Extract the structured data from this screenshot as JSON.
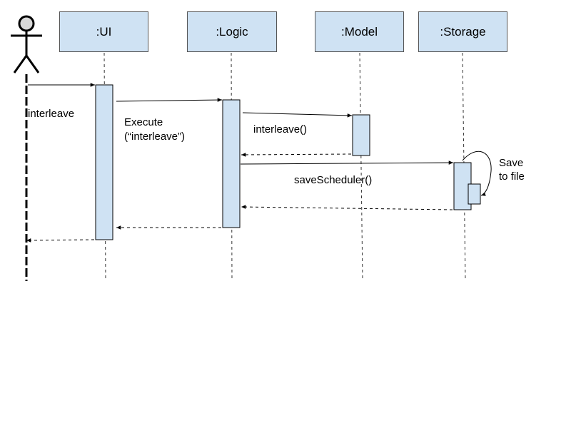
{
  "colors": {
    "participant_fill": "#cfe2f3",
    "activation_fill": "#cfe2f3",
    "line": "#000000"
  },
  "participants": [
    {
      "label": ":UI"
    },
    {
      "label": ":Logic"
    },
    {
      "label": ":Model"
    },
    {
      "label": ":Storage"
    }
  ],
  "actor": {
    "icon": "stick-figure-actor-icon"
  },
  "messages": {
    "m1": "interleave",
    "m2_line1": "Execute",
    "m2_line2": "(“interleave”)",
    "m3": "interleave()",
    "m4": "saveScheduler()",
    "m5_line1": "Save",
    "m5_line2": "to file"
  }
}
